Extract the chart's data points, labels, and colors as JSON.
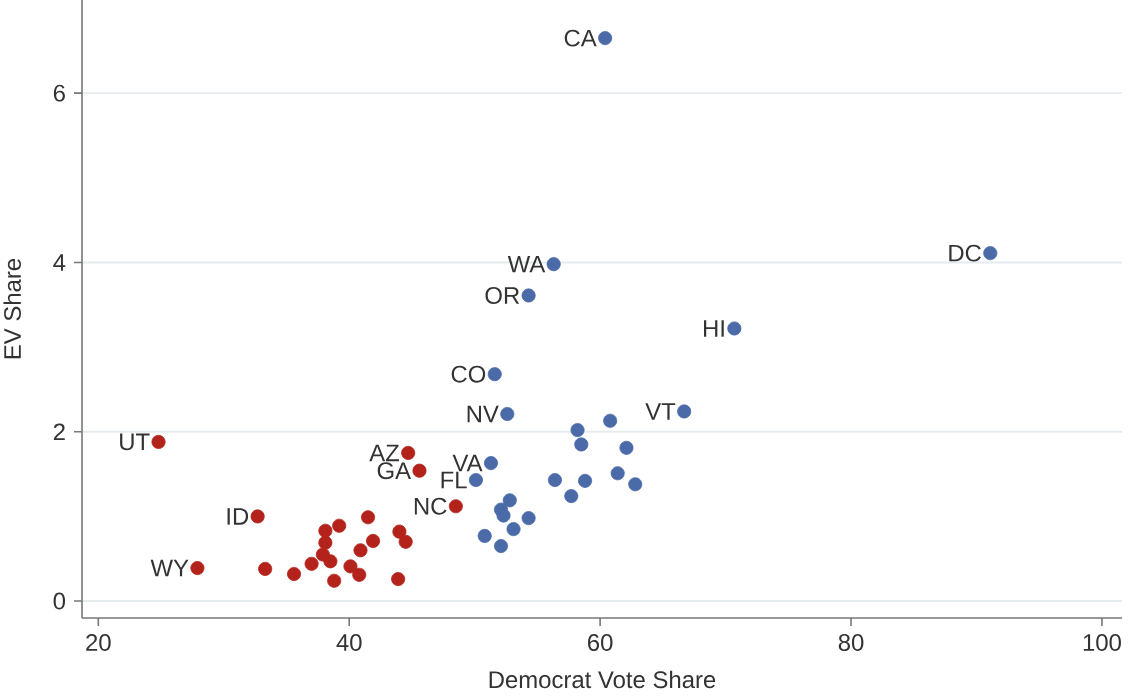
{
  "chart_data": {
    "type": "scatter",
    "xlabel": "Democrat Vote Share",
    "ylabel": "EV Share",
    "xlim": [
      18.7,
      101.6
    ],
    "ylim": [
      -0.2,
      7.1
    ],
    "xticks": [
      20,
      40,
      60,
      80,
      100
    ],
    "yticks": [
      0,
      2,
      4,
      6
    ],
    "grid": "y",
    "marker": "circle",
    "series": [
      {
        "color": "#4a6aa8",
        "x": [
          60.4,
          91.1,
          56.3,
          54.3,
          70.7,
          51.6,
          52.6,
          66.7,
          51.3,
          50.1,
          58.2,
          60.8,
          58.5,
          62.1,
          56.4,
          58.8,
          61.4,
          62.8,
          57.7,
          52.8,
          52.1,
          52.3,
          54.3,
          53.1,
          50.8,
          52.1
        ],
        "values": [
          6.65,
          4.11,
          3.98,
          3.61,
          3.22,
          2.68,
          2.21,
          2.24,
          1.63,
          1.43,
          2.02,
          2.13,
          1.85,
          1.81,
          1.43,
          1.42,
          1.51,
          1.38,
          1.24,
          1.19,
          1.08,
          1.01,
          0.98,
          0.85,
          0.77,
          0.65
        ],
        "value_labels": [
          "CA",
          "DC",
          "WA",
          "OR",
          "HI",
          "CO",
          "NV",
          "VT",
          "VA",
          "FL",
          null,
          null,
          null,
          null,
          null,
          null,
          null,
          null,
          null,
          null,
          null,
          null,
          null,
          null,
          null,
          null
        ]
      },
      {
        "color": "#b3231b",
        "x": [
          24.8,
          27.9,
          32.7,
          44.7,
          45.6,
          48.5,
          33.3,
          35.6,
          37.0,
          38.1,
          38.1,
          37.9,
          38.5,
          39.2,
          38.8,
          40.1,
          40.8,
          40.9,
          41.5,
          41.9,
          44.0,
          44.5,
          43.9
        ],
        "values": [
          1.88,
          0.39,
          1.0,
          1.75,
          1.54,
          1.12,
          0.38,
          0.32,
          0.44,
          0.83,
          0.69,
          0.55,
          0.47,
          0.89,
          0.24,
          0.41,
          0.31,
          0.6,
          0.99,
          0.71,
          0.82,
          0.7,
          0.26
        ],
        "value_labels": [
          "UT",
          "WY",
          "ID",
          "AZ",
          "GA",
          "NC",
          null,
          null,
          null,
          null,
          null,
          null,
          null,
          null,
          null,
          null,
          null,
          null,
          null,
          null,
          null,
          null,
          null
        ]
      }
    ]
  }
}
